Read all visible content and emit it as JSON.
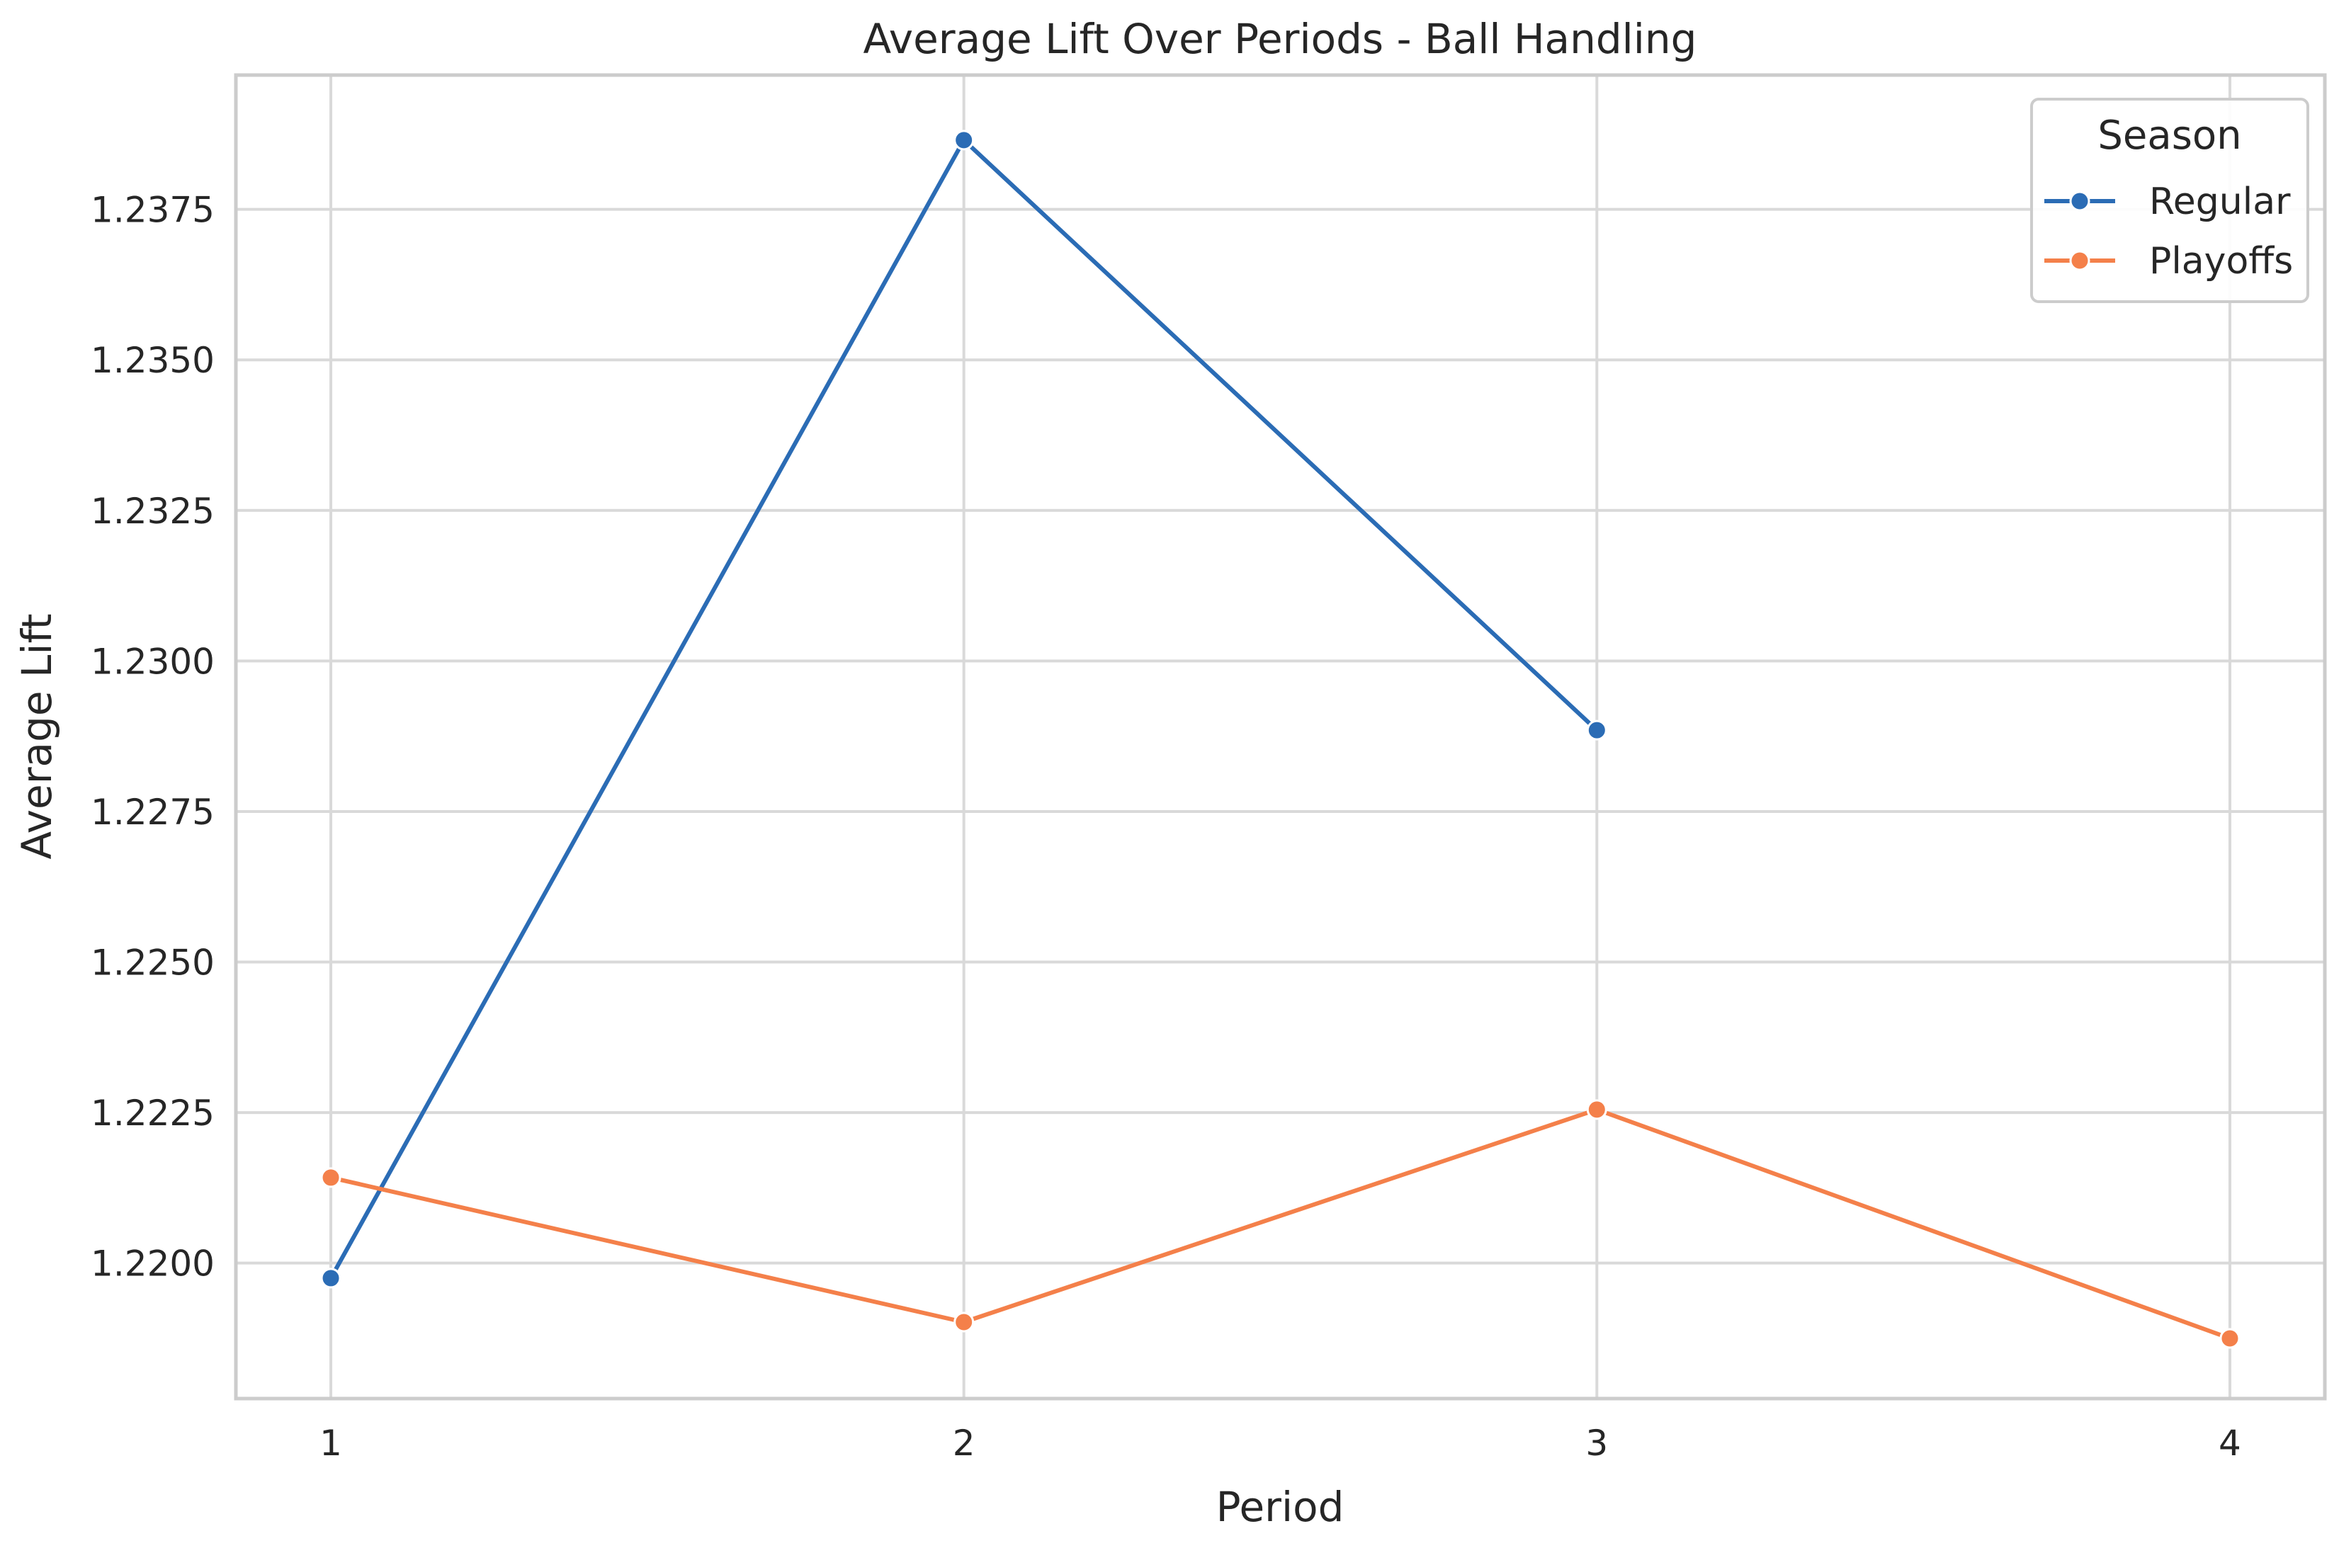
{
  "chart_data": {
    "type": "line",
    "title": "Average Lift Over Periods - Ball Handling",
    "xlabel": "Period",
    "ylabel": "Average Lift",
    "x": [
      1,
      2,
      3,
      4
    ],
    "x_tick_labels": [
      "1",
      "2",
      "3",
      "4"
    ],
    "y_ticks": [
      1.22,
      1.2225,
      1.225,
      1.2275,
      1.23,
      1.2325,
      1.235,
      1.2375
    ],
    "y_tick_labels": [
      "1.2200",
      "1.2225",
      "1.2250",
      "1.2275",
      "1.2300",
      "1.2325",
      "1.2350",
      "1.2375"
    ],
    "xlim": [
      0.85,
      4.15
    ],
    "ylim": [
      1.21775,
      1.23973
    ],
    "grid": true,
    "legend": {
      "title": "Season",
      "placement": "top-right"
    },
    "series": [
      {
        "name": "Regular",
        "color": "#2b6cb5",
        "marker": "circle",
        "points": [
          {
            "x": 1,
            "y": 1.21975
          },
          {
            "x": 2,
            "y": 1.23865
          },
          {
            "x": 3,
            "y": 1.22885
          }
        ]
      },
      {
        "name": "Playoffs",
        "color": "#f4804a",
        "marker": "circle",
        "points": [
          {
            "x": 1,
            "y": 1.22142
          },
          {
            "x": 2,
            "y": 1.21902
          },
          {
            "x": 3,
            "y": 1.22255
          },
          {
            "x": 4,
            "y": 1.21875
          }
        ]
      }
    ]
  }
}
